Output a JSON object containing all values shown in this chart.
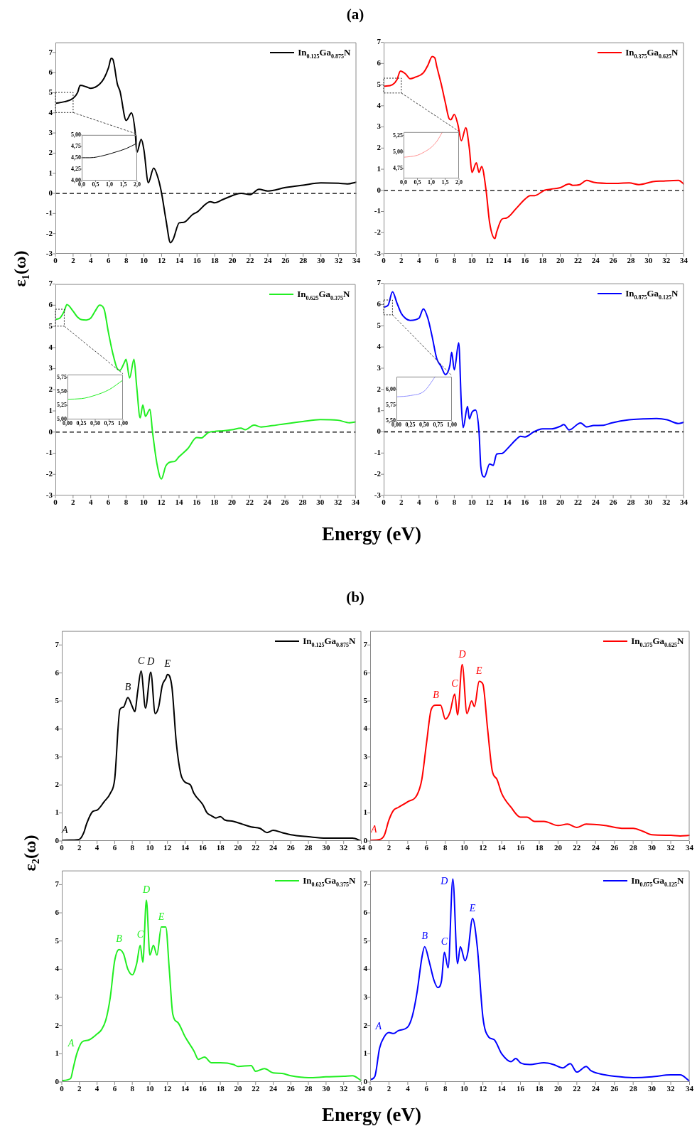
{
  "chart_data": [
    {
      "type": "line",
      "title": "(a)",
      "ylabel": "ε₁(ω)",
      "xlabel": "Energy (eV)",
      "legend": "top right",
      "xlim": [
        0,
        34
      ],
      "ylim": [
        -3,
        7.5
      ],
      "xticks": [
        0,
        2,
        4,
        6,
        8,
        10,
        12,
        14,
        16,
        18,
        20,
        22,
        24,
        26,
        28,
        30,
        32,
        34
      ],
      "yticks": [
        -3,
        -2,
        -1,
        0,
        1,
        2,
        3,
        4,
        5,
        6,
        7
      ],
      "ref_lines": [
        {
          "axis": "y",
          "value": 0,
          "line_style": "dashed",
          "color": "#000000"
        }
      ],
      "series": [
        {
          "name": "In$_{0.125}$Ga$_{0.875}$N",
          "color": "#000000",
          "x": [
            0,
            1,
            2,
            2.5,
            2.8,
            3.5,
            4,
            5,
            5.5,
            6,
            6.3,
            6.5,
            7,
            7.3,
            8,
            8.6,
            9,
            9.2,
            9.7,
            10,
            10.5,
            11.1,
            11.6,
            12,
            12.5,
            13,
            13.3,
            14,
            14.5,
            15.5,
            16,
            17.5,
            18,
            19,
            21,
            22,
            23,
            24,
            26,
            28,
            30,
            32,
            33,
            34
          ],
          "values": [
            4.47,
            4.55,
            4.72,
            5.0,
            5.37,
            5.29,
            5.22,
            5.43,
            5.72,
            6.24,
            6.71,
            6.65,
            5.43,
            5.07,
            3.62,
            4.0,
            3.1,
            2.04,
            2.68,
            2.16,
            0.53,
            1.25,
            0.76,
            0,
            -1.34,
            -2.45,
            -2.28,
            -1.46,
            -1.44,
            -1.05,
            -0.93,
            -0.41,
            -0.47,
            -0.29,
            0,
            -0.06,
            0.2,
            0.12,
            0.29,
            0.41,
            0.52,
            0.5,
            0.47,
            0.56
          ]
        }
      ]
    },
    {
      "type": "line",
      "xlim": [
        0,
        2
      ],
      "ylim": [
        4,
        5
      ],
      "xticks": [
        {
          "value": 0,
          "label": "0,0"
        },
        {
          "value": 0.5,
          "label": "0,5"
        },
        {
          "value": 1,
          "label": "1,0"
        },
        {
          "value": 1.5,
          "label": "1,5"
        },
        {
          "value": 2,
          "label": "2,0"
        }
      ],
      "yticks": [
        {
          "value": 4,
          "label": "4,00"
        },
        {
          "value": 4.25,
          "label": "4,25"
        },
        {
          "value": 4.5,
          "label": "4,50"
        },
        {
          "value": 4.75,
          "label": "4,75"
        },
        {
          "value": 5,
          "label": "5,00"
        }
      ],
      "series": [
        {
          "color": "#000000",
          "x": [
            0,
            0.3,
            0.8,
            1.2,
            1.6,
            2
          ],
          "values": [
            4.5,
            4.5,
            4.55,
            4.62,
            4.7,
            4.82
          ]
        }
      ]
    },
    {
      "type": "line",
      "legend": "top right",
      "xlim": [
        0,
        34
      ],
      "ylim": [
        -3,
        7
      ],
      "xticks": [
        0,
        2,
        4,
        6,
        8,
        10,
        12,
        14,
        16,
        18,
        20,
        22,
        24,
        26,
        28,
        30,
        32,
        34
      ],
      "yticks": [
        -3,
        -2,
        -1,
        0,
        1,
        2,
        3,
        4,
        5,
        6,
        7
      ],
      "ref_lines": [
        {
          "axis": "y",
          "value": 0,
          "line_style": "dashed",
          "color": "#000000"
        }
      ],
      "series": [
        {
          "name": "In$_{0.375}$Ga$_{0.625}$N",
          "color": "#ff0000",
          "x": [
            0,
            1,
            1.5,
            1.9,
            2.5,
            3,
            3.5,
            4.5,
            5,
            5.5,
            5.8,
            6,
            6.5,
            7,
            7.4,
            7.6,
            8,
            8.4,
            8.8,
            9.3,
            9.7,
            10,
            10.5,
            10.8,
            11.1,
            11.6,
            12,
            12.6,
            12.8,
            13.4,
            13.9,
            15,
            16,
            16.6,
            17.1,
            18.2,
            19,
            20,
            21,
            21.4,
            22.2,
            23,
            23.8,
            25.9,
            27.8,
            28.9,
            30.5,
            31.6,
            33.4,
            34
          ],
          "values": [
            4.92,
            5.0,
            5.23,
            5.64,
            5.5,
            5.28,
            5.34,
            5.56,
            5.91,
            6.33,
            6.26,
            5.89,
            5.06,
            4.12,
            3.4,
            3.34,
            3.59,
            3.12,
            2.35,
            2.96,
            2.0,
            0.85,
            1.3,
            0.85,
            1.13,
            0,
            -1.53,
            -2.28,
            -1.97,
            -1.36,
            -1.31,
            -0.86,
            -0.42,
            -0.25,
            -0.25,
            0,
            0.06,
            0.13,
            0.3,
            0.24,
            0.27,
            0.47,
            0.38,
            0.33,
            0.35,
            0.27,
            0.41,
            0.44,
            0.47,
            0.3
          ]
        }
      ]
    },
    {
      "type": "line",
      "xlim": [
        0,
        2
      ],
      "ylim": [
        4.6,
        5.3
      ],
      "xticks": [
        {
          "value": 0,
          "label": "0,0"
        },
        {
          "value": 0.5,
          "label": "0,5"
        },
        {
          "value": 1,
          "label": "1,0"
        },
        {
          "value": 1.5,
          "label": "1,5"
        },
        {
          "value": 2,
          "label": "2,0"
        }
      ],
      "yticks": [
        {
          "value": 4.75,
          "label": "4,75"
        },
        {
          "value": 5,
          "label": "5,00"
        },
        {
          "value": 5.25,
          "label": "5,25"
        }
      ],
      "series": [
        {
          "color": "#ff9090",
          "x": [
            0,
            0.25,
            0.5,
            0.75,
            1,
            1.2,
            1.4
          ],
          "values": [
            4.92,
            4.93,
            4.95,
            5.0,
            5.07,
            5.16,
            5.3
          ]
        }
      ]
    },
    {
      "type": "line",
      "legend": "top right",
      "xlim": [
        0,
        34
      ],
      "ylim": [
        -3,
        7
      ],
      "xticks": [
        0,
        2,
        4,
        6,
        8,
        10,
        12,
        14,
        16,
        18,
        20,
        22,
        24,
        26,
        28,
        30,
        32,
        34
      ],
      "yticks": [
        -3,
        -2,
        -1,
        0,
        1,
        2,
        3,
        4,
        5,
        6,
        7
      ],
      "ref_lines": [
        {
          "axis": "y",
          "value": 0,
          "line_style": "dashed",
          "color": "#000000"
        }
      ],
      "series": [
        {
          "name": "In$_{0.625}$Ga$_{0.375}$N",
          "color": "#22ee22",
          "x": [
            0,
            0.5,
            1,
            1.3,
            2,
            2.5,
            3,
            3.5,
            4,
            4.5,
            5,
            5.5,
            6,
            6.5,
            7,
            7.3,
            7.8,
            8,
            8.4,
            8.9,
            9.2,
            9.6,
            9.9,
            10.2,
            10.7,
            11,
            11.5,
            12,
            12.5,
            13,
            13.5,
            14,
            15,
            16,
            16.5,
            17.3,
            18,
            19,
            20,
            21,
            21.5,
            22.5,
            23.3,
            24.5,
            26,
            28,
            30,
            32,
            33.3,
            34
          ],
          "values": [
            5.33,
            5.39,
            5.72,
            6.03,
            5.72,
            5.44,
            5.31,
            5.3,
            5.39,
            5.72,
            6.0,
            5.83,
            4.72,
            3.72,
            3.0,
            2.92,
            3.28,
            3.44,
            2.56,
            3.44,
            2.17,
            0.67,
            1.28,
            0.74,
            1.08,
            0,
            -1.5,
            -2.22,
            -1.61,
            -1.42,
            -1.39,
            -1.17,
            -0.78,
            -0.26,
            -0.28,
            -0.03,
            0.03,
            0.06,
            0.11,
            0.19,
            0.11,
            0.33,
            0.24,
            0.3,
            0.39,
            0.5,
            0.59,
            0.56,
            0.44,
            0.48
          ]
        }
      ]
    },
    {
      "type": "line",
      "xlim": [
        0,
        1
      ],
      "ylim": [
        5,
        5.8
      ],
      "xticks": [
        {
          "value": 0,
          "label": "0,00"
        },
        {
          "value": 0.25,
          "label": "0,25"
        },
        {
          "value": 0.5,
          "label": "0,50"
        },
        {
          "value": 0.75,
          "label": "0,75"
        },
        {
          "value": 1,
          "label": "1,00"
        }
      ],
      "yticks": [
        {
          "value": 5,
          "label": "5,00"
        },
        {
          "value": 5.25,
          "label": "5,25"
        },
        {
          "value": 5.5,
          "label": "5,50"
        },
        {
          "value": 5.75,
          "label": "5,75"
        }
      ],
      "series": [
        {
          "color": "#22ee22",
          "x": [
            0,
            0.25,
            0.5,
            0.75,
            1
          ],
          "values": [
            5.36,
            5.37,
            5.43,
            5.53,
            5.7
          ]
        }
      ]
    },
    {
      "type": "line",
      "legend": "top right",
      "xlim": [
        0,
        34
      ],
      "ylim": [
        -3,
        7
      ],
      "xticks": [
        0,
        2,
        4,
        6,
        8,
        10,
        12,
        14,
        16,
        18,
        20,
        22,
        24,
        26,
        28,
        30,
        32,
        34
      ],
      "yticks": [
        -3,
        -2,
        -1,
        0,
        1,
        2,
        3,
        4,
        5,
        6,
        7
      ],
      "ref_lines": [
        {
          "axis": "y",
          "value": 0,
          "line_style": "dashed",
          "color": "#000000"
        }
      ],
      "series": [
        {
          "name": "In$_{0.875}$Ga$_{0.125}$N",
          "color": "#0000ff",
          "x": [
            0,
            0.5,
            1,
            1.5,
            2,
            2.5,
            3,
            4,
            4.5,
            5,
            5.5,
            6,
            6.5,
            7,
            7.5,
            7.7,
            8,
            8.5,
            8.8,
            9,
            9.5,
            9.7,
            10,
            10.4,
            10.8,
            11,
            11.4,
            12,
            12.4,
            12.8,
            13.4,
            14,
            15,
            15.5,
            16,
            17,
            17.5,
            18,
            19,
            20,
            20.4,
            21,
            22.3,
            23,
            23.8,
            24.9,
            25.8,
            27.8,
            29.4,
            30.9,
            32.1,
            33.4,
            34
          ],
          "values": [
            5.88,
            5.97,
            6.6,
            6.08,
            5.58,
            5.34,
            5.25,
            5.36,
            5.8,
            5.36,
            4.47,
            3.47,
            3.09,
            2.7,
            3.14,
            3.75,
            2.92,
            4.2,
            1.25,
            0.2,
            1.2,
            0.61,
            0.92,
            1.03,
            0,
            -1.63,
            -2.13,
            -1.52,
            -1.58,
            -1.05,
            -1.02,
            -0.8,
            -0.36,
            -0.21,
            -0.24,
            0,
            0.09,
            0.14,
            0.14,
            0.26,
            0.34,
            0.09,
            0.42,
            0.23,
            0.3,
            0.31,
            0.42,
            0.57,
            0.61,
            0.63,
            0.57,
            0.39,
            0.45
          ]
        }
      ]
    },
    {
      "type": "line",
      "xlim": [
        0,
        1
      ],
      "ylim": [
        5.5,
        6.2
      ],
      "xticks": [
        {
          "value": 0,
          "label": "0,00"
        },
        {
          "value": 0.25,
          "label": "0,25"
        },
        {
          "value": 0.5,
          "label": "0,50"
        },
        {
          "value": 0.75,
          "label": "0,75"
        },
        {
          "value": 1,
          "label": "1,00"
        }
      ],
      "yticks": [
        {
          "value": 5.5,
          "label": "5,50"
        },
        {
          "value": 5.75,
          "label": "5,75"
        },
        {
          "value": 6,
          "label": "6,00"
        }
      ],
      "series": [
        {
          "color": "#9090ff",
          "x": [
            0,
            0.25,
            0.5,
            0.7
          ],
          "values": [
            5.88,
            5.9,
            5.97,
            6.2
          ]
        }
      ]
    },
    {
      "type": "line",
      "title": "(b)",
      "ylabel": "ε₂(ω)",
      "xlabel": "Energy (eV)",
      "legend": "top right",
      "xlim": [
        0,
        34
      ],
      "ylim": [
        0,
        7.5
      ],
      "xticks": [
        0,
        2,
        4,
        6,
        8,
        10,
        12,
        14,
        16,
        18,
        20,
        22,
        24,
        26,
        28,
        30,
        32,
        34
      ],
      "yticks": [
        0,
        1,
        2,
        3,
        4,
        5,
        6,
        7
      ],
      "annotations": [
        {
          "text": "A",
          "x": 1,
          "y": 0.03
        },
        {
          "text": "B",
          "x": 7.5,
          "y": 5.12
        },
        {
          "text": "C",
          "x": 9,
          "y": 6.07
        },
        {
          "text": "D",
          "x": 10.1,
          "y": 6.03
        },
        {
          "text": "E",
          "x": 12,
          "y": 5.95
        }
      ],
      "series": [
        {
          "name": "In$_{0.125}$Ga$_{0.875}$N",
          "color": "#000000",
          "x": [
            0,
            1,
            2,
            2.5,
            2.8,
            3.5,
            4,
            4.8,
            5.5,
            6,
            6.6,
            7,
            7.5,
            8,
            8.3,
            8.6,
            9,
            9.5,
            10.1,
            10.6,
            11,
            11.4,
            11.8,
            12,
            12.5,
            13,
            13.5,
            14,
            14.6,
            15,
            16,
            16.5,
            17,
            17.5,
            18,
            18.5,
            19.5,
            20.5,
            21.5,
            22.5,
            23.3,
            24,
            25,
            26,
            28,
            30,
            32,
            33,
            34
          ],
          "values": [
            0.02,
            0.03,
            0.06,
            0.3,
            0.6,
            1.05,
            1.1,
            1.4,
            1.7,
            2.2,
            4.7,
            4.78,
            5.12,
            4.8,
            4.62,
            5.3,
            6.07,
            4.75,
            6.03,
            4.55,
            4.8,
            5.55,
            5.8,
            5.95,
            5.5,
            3.5,
            2.4,
            2.1,
            2.0,
            1.7,
            1.3,
            1.0,
            0.9,
            0.82,
            0.87,
            0.75,
            0.7,
            0.6,
            0.5,
            0.45,
            0.3,
            0.38,
            0.3,
            0.22,
            0.15,
            0.1,
            0.1,
            0.1,
            0
          ]
        }
      ]
    },
    {
      "type": "line",
      "legend": "top right",
      "xlim": [
        0,
        34
      ],
      "ylim": [
        0,
        7.5
      ],
      "xticks": [
        0,
        2,
        4,
        6,
        8,
        10,
        12,
        14,
        16,
        18,
        20,
        22,
        24,
        26,
        28,
        30,
        32,
        34
      ],
      "yticks": [
        0,
        1,
        2,
        3,
        4,
        5,
        6,
        7
      ],
      "annotations": [
        {
          "text": "A",
          "x": 1,
          "y": 0.05
        },
        {
          "text": "B",
          "x": 7,
          "y": 4.85
        },
        {
          "text": "C",
          "x": 9,
          "y": 5.25
        },
        {
          "text": "D",
          "x": 9.8,
          "y": 6.3
        },
        {
          "text": "E",
          "x": 11.6,
          "y": 5.7
        }
      ],
      "series": [
        {
          "name": "In$_{0.375}$Ga$_{0.625}$N",
          "color": "#ff0000",
          "x": [
            0,
            1,
            1.5,
            2,
            2.5,
            3,
            4,
            5,
            5.5,
            6,
            6.5,
            7,
            7.5,
            8,
            8.5,
            9,
            9.3,
            9.8,
            10.3,
            10.8,
            11.1,
            11.6,
            12,
            12.5,
            13,
            13.5,
            14,
            15,
            16,
            16.7,
            17.5,
            18.5,
            20,
            21,
            22,
            23,
            25,
            27,
            28,
            29,
            30,
            32,
            33,
            34
          ],
          "values": [
            0.02,
            0.05,
            0.2,
            0.75,
            1.1,
            1.2,
            1.4,
            1.65,
            2.2,
            3.5,
            4.7,
            4.85,
            4.85,
            4.35,
            4.6,
            5.25,
            4.5,
            6.3,
            4.55,
            5.0,
            4.8,
            5.7,
            5.6,
            4.0,
            2.5,
            2.2,
            1.7,
            1.2,
            0.85,
            0.85,
            0.7,
            0.7,
            0.55,
            0.6,
            0.48,
            0.6,
            0.55,
            0.45,
            0.45,
            0.35,
            0.22,
            0.2,
            0.18,
            0.2
          ]
        }
      ]
    },
    {
      "type": "line",
      "legend": "top right",
      "xlim": [
        0,
        34
      ],
      "ylim": [
        0,
        7.5
      ],
      "xticks": [
        0,
        2,
        4,
        6,
        8,
        10,
        12,
        14,
        16,
        18,
        20,
        22,
        24,
        26,
        28,
        30,
        32,
        34
      ],
      "yticks": [
        0,
        1,
        2,
        3,
        4,
        5,
        6,
        7
      ],
      "annotations": [
        {
          "text": "A",
          "x": 1.7,
          "y": 1.0
        },
        {
          "text": "B",
          "x": 6.5,
          "y": 4.7
        },
        {
          "text": "C",
          "x": 8.9,
          "y": 4.85
        },
        {
          "text": "D",
          "x": 9.6,
          "y": 6.45
        },
        {
          "text": "E",
          "x": 11.3,
          "y": 5.5
        }
      ],
      "series": [
        {
          "name": "In$_{0.625}$Ga$_{0.375}$N",
          "color": "#22ee22",
          "x": [
            0,
            1,
            1.3,
            1.7,
            2.3,
            3,
            4,
            4.5,
            5,
            5.5,
            6,
            6.5,
            7,
            7.5,
            8,
            8.5,
            8.9,
            9.2,
            9.6,
            10,
            10.4,
            10.8,
            11.3,
            11.8,
            12.2,
            12.6,
            13.2,
            14,
            15,
            15.5,
            16.2,
            17,
            18,
            19.5,
            20,
            21.5,
            22,
            23,
            24,
            25,
            26,
            28,
            30,
            32,
            33,
            34
          ],
          "values": [
            0.05,
            0.12,
            0.5,
            1.0,
            1.42,
            1.48,
            1.7,
            1.85,
            2.2,
            3.0,
            4.3,
            4.7,
            4.55,
            4.0,
            3.8,
            4.2,
            4.85,
            4.25,
            6.45,
            4.5,
            4.85,
            4.5,
            5.5,
            5.5,
            4.0,
            2.4,
            2.1,
            1.6,
            1.1,
            0.8,
            0.88,
            0.68,
            0.68,
            0.62,
            0.55,
            0.58,
            0.38,
            0.47,
            0.32,
            0.3,
            0.22,
            0.15,
            0.18,
            0.2,
            0.22,
            0.05
          ]
        }
      ]
    },
    {
      "type": "line",
      "legend": "top right",
      "xlim": [
        0,
        34
      ],
      "ylim": [
        0,
        7.5
      ],
      "xticks": [
        0,
        2,
        4,
        6,
        8,
        10,
        12,
        14,
        16,
        18,
        20,
        22,
        24,
        26,
        28,
        30,
        32,
        34
      ],
      "yticks": [
        0,
        1,
        2,
        3,
        4,
        5,
        6,
        7
      ],
      "annotations": [
        {
          "text": "A",
          "x": 1.5,
          "y": 1.6
        },
        {
          "text": "B",
          "x": 5.8,
          "y": 4.8
        },
        {
          "text": "C",
          "x": 7.9,
          "y": 4.6
        },
        {
          "text": "D",
          "x": 8.8,
          "y": 7.2
        },
        {
          "text": "E",
          "x": 10.9,
          "y": 5.8
        }
      ],
      "series": [
        {
          "name": "In$_{0.875}$Ga$_{0.125}$N",
          "color": "#0000ff",
          "x": [
            0,
            0.5,
            1,
            1.5,
            2,
            2.5,
            3,
            4,
            4.5,
            5,
            5.5,
            5.8,
            6.3,
            6.8,
            7.2,
            7.6,
            7.9,
            8.3,
            8.8,
            9.3,
            9.6,
            10.1,
            10.4,
            10.9,
            11.4,
            12,
            12.6,
            13.2,
            14,
            15,
            15.5,
            16,
            17,
            18.5,
            19.5,
            20.5,
            21.3,
            22,
            23,
            23.5,
            25,
            26,
            28,
            30,
            32,
            33,
            34
          ],
          "values": [
            0.08,
            0.2,
            1.2,
            1.6,
            1.75,
            1.72,
            1.82,
            1.95,
            2.35,
            3.2,
            4.4,
            4.8,
            4.25,
            3.6,
            3.35,
            3.6,
            4.6,
            4.05,
            7.2,
            4.2,
            4.8,
            4.3,
            4.6,
            5.8,
            4.8,
            2.3,
            1.6,
            1.5,
            1.0,
            0.72,
            0.83,
            0.68,
            0.62,
            0.68,
            0.62,
            0.5,
            0.65,
            0.35,
            0.55,
            0.4,
            0.25,
            0.2,
            0.15,
            0.18,
            0.25,
            0.25,
            0.03
          ]
        }
      ]
    }
  ]
}
